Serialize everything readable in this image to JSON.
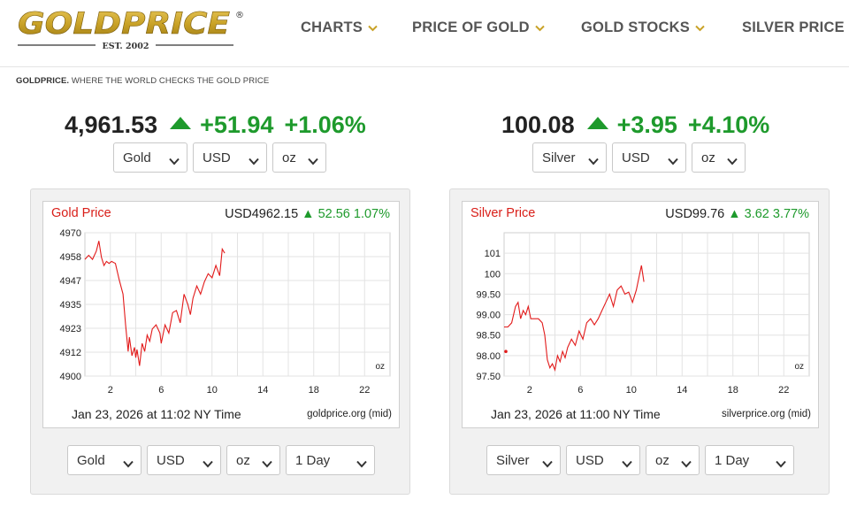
{
  "header": {
    "logo_text": "GOLDPRICE",
    "logo_reg": "®",
    "logo_est": "EST. 2002",
    "nav": [
      {
        "label": "CHARTS",
        "icon": "chevron-down-icon"
      },
      {
        "label": "PRICE OF GOLD",
        "icon": "chevron-down-icon"
      },
      {
        "label": "GOLD STOCKS",
        "icon": "chevron-down-icon"
      },
      {
        "label": "SILVER PRICE"
      }
    ]
  },
  "tagline": {
    "brand": "GOLDPRICE.",
    "text": " WHERE THE WORLD CHECKS THE GOLD PRICE"
  },
  "colors": {
    "gold_accent": "#c9a227",
    "up_green": "#1e9a2c",
    "chart_red": "#d91e18"
  },
  "gold": {
    "price": "4,961.53",
    "change": "+51.94",
    "percent": "+1.06%",
    "selects": {
      "metal": "Gold",
      "currency": "USD",
      "unit": "oz"
    },
    "chart": {
      "title": "Gold Price",
      "quote_price": "USD4962.15",
      "quote_change": "52.56 1.07%",
      "unit_label": "oz",
      "time": "Jan 23, 2026 at 11:02 NY Time",
      "source": "goldprice.org (mid)",
      "selects": {
        "metal": "Gold",
        "currency": "USD",
        "unit": "oz",
        "range": "1 Day"
      }
    }
  },
  "silver": {
    "price": "100.08",
    "change": "+3.95",
    "percent": "+4.10%",
    "selects": {
      "metal": "Silver",
      "currency": "USD",
      "unit": "oz"
    },
    "chart": {
      "title": "Silver Price",
      "quote_price": "USD99.76",
      "quote_change": "3.62 3.77%",
      "unit_label": "oz",
      "time": "Jan 23, 2026 at 11:00 NY Time",
      "source": "silverprice.org (mid)",
      "selects": {
        "metal": "Silver",
        "currency": "USD",
        "unit": "oz",
        "range": "1 Day"
      }
    }
  },
  "chart_data": [
    {
      "type": "line",
      "title": "Gold Price",
      "xlabel": "",
      "ylabel": "",
      "xlim": [
        0,
        24
      ],
      "ylim": [
        4900,
        4970
      ],
      "x_ticks": [
        2,
        6,
        10,
        14,
        18,
        22
      ],
      "y_ticks": [
        "4970",
        "4958",
        "4947",
        "4935",
        "4923",
        "4912",
        "4900"
      ],
      "y_tick_values": [
        4970,
        4958.33,
        4946.67,
        4935,
        4923.33,
        4911.67,
        4900
      ],
      "grid": true,
      "series": [
        {
          "x": [
            0,
            0.3,
            0.6,
            0.9,
            1.1,
            1.3,
            1.5,
            1.7,
            1.9,
            2.1,
            2.4,
            2.7,
            3.0,
            3.2,
            3.4,
            3.5,
            3.7,
            3.9,
            4.0,
            4.1,
            4.3,
            4.5,
            4.7,
            4.9,
            5.1,
            5.3,
            5.6,
            5.9,
            6.0,
            6.3,
            6.6,
            6.9,
            7.2,
            7.5,
            7.8,
            8.1,
            8.3,
            8.5,
            8.8,
            9.1,
            9.4,
            9.7,
            10.0,
            10.3,
            10.6,
            10.8,
            11.0
          ],
          "y": [
            4957,
            4959,
            4957,
            4961,
            4966,
            4958,
            4954,
            4956,
            4955,
            4956,
            4955,
            4947,
            4940,
            4925,
            4912,
            4919,
            4910,
            4914,
            4909,
            4913,
            4905,
            4916,
            4912,
            4920,
            4917,
            4923,
            4925,
            4921,
            4916,
            4925,
            4921,
            4931,
            4932,
            4926,
            4940,
            4935,
            4930,
            4938,
            4944,
            4940,
            4946,
            4950,
            4948,
            4954,
            4949,
            4962,
            4960
          ]
        }
      ]
    },
    {
      "type": "line",
      "title": "Silver Price",
      "xlabel": "",
      "ylabel": "",
      "xlim": [
        0,
        24
      ],
      "ylim": [
        97.5,
        101
      ],
      "x_ticks": [
        2,
        6,
        10,
        14,
        18,
        22
      ],
      "y_ticks": [
        "101",
        "100",
        "99.50",
        "99.00",
        "98.50",
        "98.00",
        "97.50"
      ],
      "y_tick_values": [
        100.5,
        100,
        99.5,
        99,
        98.5,
        98,
        97.5
      ],
      "grid": true,
      "series": [
        {
          "x": [
            0,
            0.3,
            0.6,
            0.9,
            1.1,
            1.3,
            1.5,
            1.7,
            1.9,
            2.1,
            2.4,
            2.7,
            3.0,
            3.2,
            3.4,
            3.6,
            3.8,
            4.0,
            4.2,
            4.4,
            4.6,
            4.8,
            5.0,
            5.3,
            5.6,
            5.9,
            6.2,
            6.5,
            6.8,
            7.1,
            7.4,
            7.7,
            8.0,
            8.3,
            8.6,
            8.9,
            9.2,
            9.5,
            9.8,
            10.1,
            10.4,
            10.6,
            10.8,
            11.0
          ],
          "y": [
            98.7,
            98.7,
            98.8,
            99.2,
            99.3,
            98.9,
            99.1,
            99.0,
            99.2,
            98.9,
            98.9,
            98.9,
            98.8,
            98.5,
            97.9,
            97.7,
            97.8,
            97.65,
            98.0,
            97.85,
            98.1,
            97.95,
            98.2,
            98.4,
            98.25,
            98.6,
            98.4,
            98.8,
            98.9,
            98.75,
            98.9,
            99.1,
            99.3,
            99.5,
            99.2,
            99.6,
            99.7,
            99.5,
            99.55,
            99.3,
            99.6,
            99.9,
            100.2,
            99.8
          ]
        }
      ],
      "markers": [
        {
          "x": 0,
          "y": 98.1
        }
      ]
    }
  ]
}
